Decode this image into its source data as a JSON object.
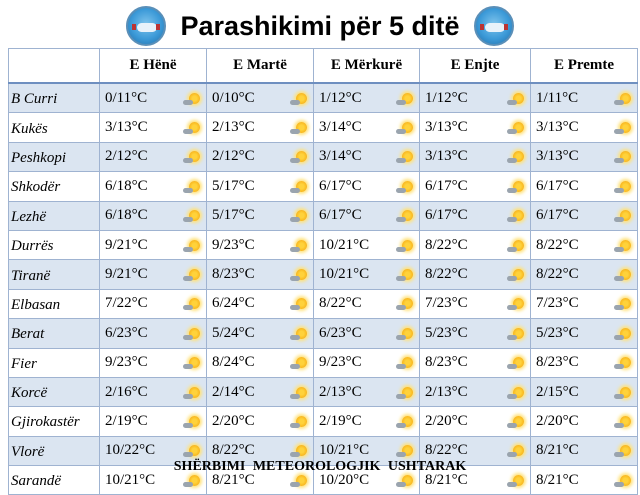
{
  "header": {
    "title": "Parashikimi për 5 ditë",
    "logo_icon": "meteorological-service-emblem"
  },
  "table": {
    "days": [
      "E Hënë",
      "E Martë",
      "E Mërkurë",
      "E Enjte",
      "E Premte"
    ],
    "row_alt_color": "#dbe5f1",
    "icon": "sun-partly-cloudy-icon",
    "rows": [
      {
        "city": "B Curri",
        "values": [
          "0/11°C",
          "0/10°C",
          "1/12°C",
          "1/12°C",
          "1/11°C"
        ]
      },
      {
        "city": "Kukës",
        "values": [
          "3/13°C",
          "2/13°C",
          "3/14°C",
          "3/13°C",
          "3/13°C"
        ]
      },
      {
        "city": "Peshkopi",
        "values": [
          "2/12°C",
          "2/12°C",
          "3/14°C",
          "3/13°C",
          "3/13°C"
        ]
      },
      {
        "city": "Shkodër",
        "values": [
          "6/18°C",
          "5/17°C",
          "6/17°C",
          "6/17°C",
          "6/17°C"
        ]
      },
      {
        "city": "Lezhë",
        "values": [
          "6/18°C",
          "5/17°C",
          "6/17°C",
          "6/17°C",
          "6/17°C"
        ]
      },
      {
        "city": "Durrës",
        "values": [
          "9/21°C",
          "9/23°C",
          "10/21°C",
          "8/22°C",
          "8/22°C"
        ]
      },
      {
        "city": "Tiranë",
        "values": [
          "9/21°C",
          "8/23°C",
          "10/21°C",
          "8/22°C",
          "8/22°C"
        ]
      },
      {
        "city": "Elbasan",
        "values": [
          "7/22°C",
          "6/24°C",
          "8/22°C",
          "7/23°C",
          "7/23°C"
        ]
      },
      {
        "city": "Berat",
        "values": [
          "6/23°C",
          "5/24°C",
          "6/23°C",
          "5/23°C",
          "5/23°C"
        ]
      },
      {
        "city": "Fier",
        "values": [
          "9/23°C",
          "8/24°C",
          "9/23°C",
          "8/23°C",
          "8/23°C"
        ]
      },
      {
        "city": "Korcë",
        "values": [
          "2/16°C",
          "2/14°C",
          "2/13°C",
          "2/13°C",
          "2/15°C"
        ]
      },
      {
        "city": "Gjirokastër",
        "values": [
          "2/19°C",
          "2/20°C",
          "2/19°C",
          "2/20°C",
          "2/20°C"
        ]
      },
      {
        "city": "Vlorë",
        "values": [
          "10/22°C",
          "8/22°C",
          "10/21°C",
          "8/22°C",
          "8/21°C"
        ]
      },
      {
        "city": "Sarandë",
        "values": [
          "10/21°C",
          "8/21°C",
          "10/20°C",
          "8/21°C",
          "8/21°C"
        ]
      }
    ]
  },
  "footer": {
    "text": "SHËRBIMI METEOROLOGJIK USHTARAK"
  }
}
